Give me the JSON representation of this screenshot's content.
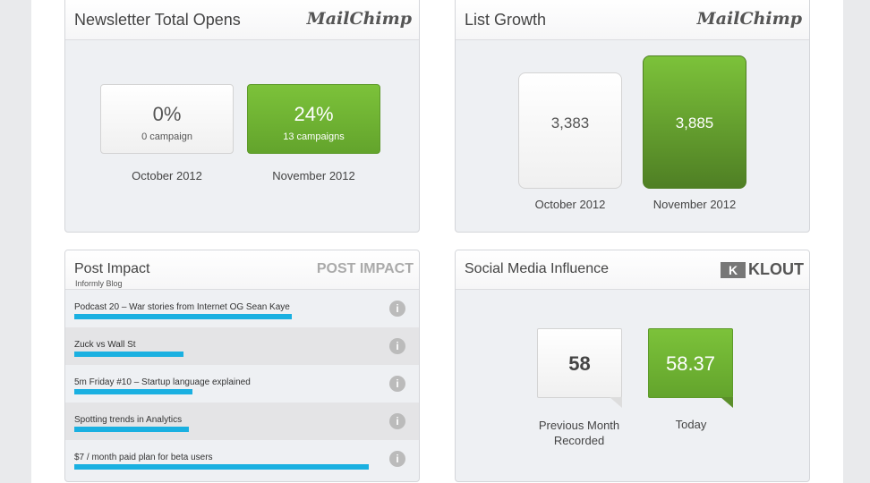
{
  "newsletter": {
    "title": "Newsletter Total Opens",
    "logo": "MailChimp",
    "items": [
      {
        "value": "0%",
        "sub": "0 campaign",
        "label": "October 2012"
      },
      {
        "value": "24%",
        "sub": "13 campaigns",
        "label": "November 2012"
      }
    ]
  },
  "growth": {
    "title": "List Growth",
    "logo": "MailChimp",
    "items": [
      {
        "value": "3,383",
        "label": "October 2012"
      },
      {
        "value": "3,885",
        "label": "November 2012"
      }
    ]
  },
  "post": {
    "title": "Post Impact",
    "subtitle": "Informly Blog",
    "logo": "POST IMPACT",
    "rows": [
      {
        "title": "Podcast 20 – War stories from Internet OG Sean Kaye",
        "impact": 0.74
      },
      {
        "title": "Zuck vs Wall St",
        "impact": 0.37
      },
      {
        "title": "5m Friday #10 – Startup language explained",
        "impact": 0.4
      },
      {
        "title": "Spotting trends in Analytics",
        "impact": 0.39
      },
      {
        "title": "$7 / month paid plan for beta users",
        "impact": 1.0
      }
    ]
  },
  "social": {
    "title": "Social Media Influence",
    "logo": "KLOUT",
    "items": [
      {
        "value": "58",
        "label1": "Previous Month",
        "label2": "Recorded"
      },
      {
        "value": "58.37",
        "label1": "Today"
      }
    ]
  }
}
